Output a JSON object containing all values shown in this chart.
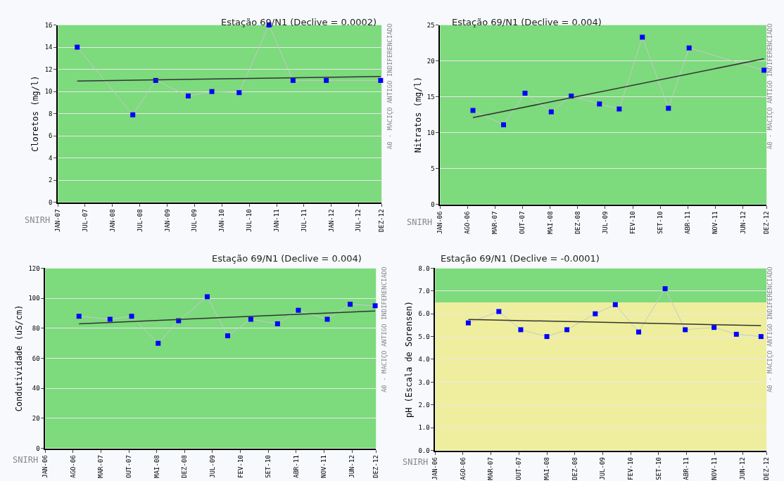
{
  "chart_data": [
    {
      "type": "line",
      "title": "Estação 69/N1 (Declive = 0.0002)",
      "ylabel": "Cloretos (mg/l)",
      "annotations": [
        "A0 - MACIÇO ANTIGO INDIFERENCIADO",
        "SNIRH"
      ],
      "xlim": [
        "2007-01-01",
        "2012-12-01"
      ],
      "xticks": [
        {
          "value": "2007-01-01",
          "label": "JAN-07"
        },
        {
          "value": "2007-07-01",
          "label": "JUL-07"
        },
        {
          "value": "2008-01-01",
          "label": "JAN-08"
        },
        {
          "value": "2008-07-01",
          "label": "JUL-08"
        },
        {
          "value": "2009-01-01",
          "label": "JAN-09"
        },
        {
          "value": "2009-07-01",
          "label": "JUL-09"
        },
        {
          "value": "2010-01-01",
          "label": "JAN-10"
        },
        {
          "value": "2010-07-01",
          "label": "JUL-10"
        },
        {
          "value": "2011-01-01",
          "label": "JAN-11"
        },
        {
          "value": "2011-07-01",
          "label": "JUL-11"
        },
        {
          "value": "2012-01-01",
          "label": "JAN-12"
        },
        {
          "value": "2012-07-01",
          "label": "JUL-12"
        },
        {
          "value": "2012-12-01",
          "label": "DEZ-12"
        }
      ],
      "ylim": [
        0,
        16
      ],
      "yticks": [
        0,
        2,
        4,
        6,
        8,
        10,
        12,
        14,
        16
      ],
      "grid": "y",
      "bands": [
        {
          "axis": "y",
          "from": 0,
          "to": 16,
          "color": "#7dda7d"
        }
      ],
      "series": [
        {
          "color": "#0000ff",
          "marker": "square",
          "x": [
            "2007-05-10",
            "2008-05-15",
            "2008-10-15",
            "2009-05-20",
            "2009-10-25",
            "2010-04-25",
            "2010-11-10",
            "2011-04-20",
            "2011-11-28",
            "2012-11-25"
          ],
          "values": [
            14,
            7.9,
            11,
            9.6,
            10,
            9.9,
            16,
            11,
            11,
            11
          ]
        },
        {
          "color": "#333333",
          "marker": "none",
          "x": [
            "2007-05-10",
            "2012-11-25"
          ],
          "values": [
            10.95,
            11.35
          ]
        }
      ]
    },
    {
      "type": "line",
      "title": "Estação 69/N1 (Declive = 0.004)",
      "ylabel": "Nitratos (mg/l)",
      "annotations": [
        "A0 - MACIÇO ANTIGO INDIFERENCIADO",
        "SNIRH"
      ],
      "xlim": [
        "2006-01-01",
        "2012-12-01"
      ],
      "xticks": [
        {
          "value": "2006-01-01",
          "label": "JAN-06"
        },
        {
          "value": "2006-08-01",
          "label": "AGO-06"
        },
        {
          "value": "2007-03-01",
          "label": "MAR-07"
        },
        {
          "value": "2007-10-01",
          "label": "OUT-07"
        },
        {
          "value": "2008-05-01",
          "label": "MAI-08"
        },
        {
          "value": "2008-12-01",
          "label": "DEZ-08"
        },
        {
          "value": "2009-07-01",
          "label": "JUL-09"
        },
        {
          "value": "2010-02-01",
          "label": "FEV-10"
        },
        {
          "value": "2010-09-01",
          "label": "SET-10"
        },
        {
          "value": "2011-04-01",
          "label": "ABR-11"
        },
        {
          "value": "2011-11-01",
          "label": "NOV-11"
        },
        {
          "value": "2012-06-01",
          "label": "JUN-12"
        },
        {
          "value": "2012-12-01",
          "label": "DEZ-12"
        }
      ],
      "ylim": [
        0,
        25
      ],
      "yticks": [
        0,
        5,
        10,
        15,
        20,
        25
      ],
      "grid": "y",
      "bands": [
        {
          "axis": "y",
          "from": 0,
          "to": 25,
          "color": "#7dda7d"
        }
      ],
      "series": [
        {
          "color": "#0000ff",
          "marker": "square",
          "x": [
            "2006-09-12",
            "2007-05-07",
            "2007-10-20",
            "2008-05-10",
            "2008-10-12",
            "2009-05-18",
            "2009-10-18",
            "2010-04-15",
            "2010-11-03",
            "2011-04-12",
            "2012-11-12"
          ],
          "values": [
            13.1,
            11.1,
            15.5,
            12.9,
            15.1,
            14.0,
            13.3,
            23.3,
            13.4,
            21.8,
            18.7
          ]
        },
        {
          "color": "#333333",
          "marker": "none",
          "x": [
            "2006-09-12",
            "2012-11-12"
          ],
          "values": [
            12.1,
            20.3
          ]
        }
      ]
    },
    {
      "type": "line",
      "title": "Estação 69/N1 (Declive = 0.004)",
      "ylabel": "Condutividade (uS/cm)",
      "annotations": [
        "A0 - MACIÇO ANTIGO INDIFERENCIADO",
        "SNIRH"
      ],
      "xlim": [
        "2006-01-01",
        "2012-12-01"
      ],
      "xticks": [
        {
          "value": "2006-01-01",
          "label": "JAN-06"
        },
        {
          "value": "2006-08-01",
          "label": "AGO-06"
        },
        {
          "value": "2007-03-01",
          "label": "MAR-07"
        },
        {
          "value": "2007-10-01",
          "label": "OUT-07"
        },
        {
          "value": "2008-05-01",
          "label": "MAI-08"
        },
        {
          "value": "2008-12-01",
          "label": "DEZ-08"
        },
        {
          "value": "2009-07-01",
          "label": "JUL-09"
        },
        {
          "value": "2010-02-01",
          "label": "FEV-10"
        },
        {
          "value": "2010-09-01",
          "label": "SET-10"
        },
        {
          "value": "2011-04-01",
          "label": "ABR-11"
        },
        {
          "value": "2011-11-01",
          "label": "NOV-11"
        },
        {
          "value": "2012-06-01",
          "label": "JUN-12"
        },
        {
          "value": "2012-12-01",
          "label": "DEZ-12"
        }
      ],
      "ylim": [
        0,
        120
      ],
      "yticks": [
        0,
        20,
        40,
        60,
        80,
        100,
        120
      ],
      "grid": "y",
      "bands": [
        {
          "axis": "y",
          "from": 0,
          "to": 120,
          "color": "#7dda7d"
        }
      ],
      "series": [
        {
          "color": "#0000ff",
          "marker": "square",
          "x": [
            "2006-09-15",
            "2007-05-10",
            "2007-10-22",
            "2008-05-12",
            "2008-10-15",
            "2009-05-22",
            "2009-10-25",
            "2010-04-20",
            "2010-11-10",
            "2011-04-18",
            "2011-11-25",
            "2012-05-18",
            "2012-11-25"
          ],
          "values": [
            88,
            86,
            88,
            70,
            85,
            101,
            75,
            86,
            83,
            92,
            86,
            96,
            95
          ]
        },
        {
          "color": "#333333",
          "marker": "none",
          "x": [
            "2006-09-15",
            "2012-11-25"
          ],
          "values": [
            83,
            91.5
          ]
        }
      ]
    },
    {
      "type": "line",
      "title": "Estação 69/N1 (Declive = -0.0001)",
      "ylabel": "pH (Escala de Sorensen)",
      "annotations": [
        "A0 - MACIÇO ANTIGO INDIFERENCIADO",
        "SNIRH"
      ],
      "xlim": [
        "2006-01-01",
        "2012-12-01"
      ],
      "xticks": [
        {
          "value": "2006-01-01",
          "label": "JAN-06"
        },
        {
          "value": "2006-08-01",
          "label": "AGO-06"
        },
        {
          "value": "2007-03-01",
          "label": "MAR-07"
        },
        {
          "value": "2007-10-01",
          "label": "OUT-07"
        },
        {
          "value": "2008-05-01",
          "label": "MAI-08"
        },
        {
          "value": "2008-12-01",
          "label": "DEZ-08"
        },
        {
          "value": "2009-07-01",
          "label": "JUL-09"
        },
        {
          "value": "2010-02-01",
          "label": "FEV-10"
        },
        {
          "value": "2010-09-01",
          "label": "SET-10"
        },
        {
          "value": "2011-04-01",
          "label": "ABR-11"
        },
        {
          "value": "2011-11-01",
          "label": "NOV-11"
        },
        {
          "value": "2012-06-01",
          "label": "JUN-12"
        },
        {
          "value": "2012-12-01",
          "label": "DEZ-12"
        }
      ],
      "ylim": [
        0,
        8
      ],
      "yticks": [
        {
          "value": 0,
          "label": "0.0"
        },
        {
          "value": 1,
          "label": "1.0"
        },
        {
          "value": 2,
          "label": "2.0"
        },
        {
          "value": 3,
          "label": "3.0"
        },
        {
          "value": 4,
          "label": "4.0"
        },
        {
          "value": 5,
          "label": "5.0"
        },
        {
          "value": 6,
          "label": "6.0"
        },
        {
          "value": 7,
          "label": "7.0"
        },
        {
          "value": 8,
          "label": "8.0"
        }
      ],
      "grid": "y",
      "bands": [
        {
          "axis": "y",
          "from": 0,
          "to": 6.5,
          "color": "#eeee9e"
        },
        {
          "axis": "y",
          "from": 6.5,
          "to": 8,
          "color": "#7dda7d"
        }
      ],
      "series": [
        {
          "color": "#0000ff",
          "marker": "square",
          "x": [
            "2006-09-10",
            "2007-05-01",
            "2007-10-15",
            "2008-05-01",
            "2008-10-01",
            "2009-05-05",
            "2009-10-05",
            "2010-04-01",
            "2010-10-20",
            "2011-03-22",
            "2011-10-28",
            "2012-04-15",
            "2012-10-20"
          ],
          "values": [
            5.6,
            6.1,
            5.3,
            5.0,
            5.3,
            6.0,
            6.4,
            5.2,
            7.1,
            5.3,
            5.4,
            5.1,
            5.0
          ]
        },
        {
          "color": "#333333",
          "marker": "none",
          "x": [
            "2006-09-10",
            "2012-10-20"
          ],
          "values": [
            5.75,
            5.48
          ]
        }
      ]
    }
  ]
}
